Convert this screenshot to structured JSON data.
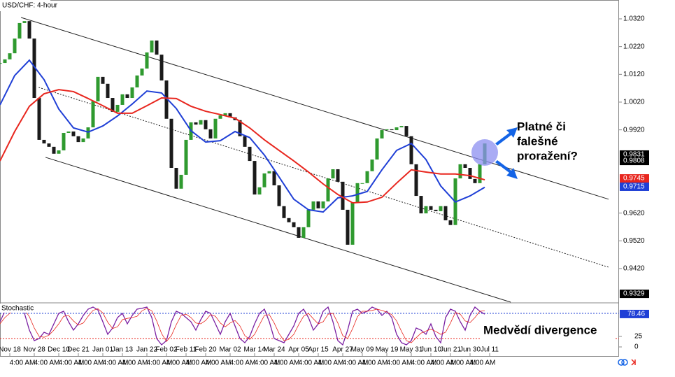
{
  "chart_data": {
    "type": "candlestick",
    "title": "USD/CHF: 4-hour",
    "xlim": [
      0,
      126
    ],
    "xticks": [
      {
        "value": 2,
        "label": "Nov 18",
        "time": "4:00 AM"
      },
      {
        "value": 7,
        "label": "Nov 28",
        "time": "4:00 AM"
      },
      {
        "value": 12,
        "label": "Dec 10",
        "time": "4:00 AM"
      },
      {
        "value": 16,
        "label": "Dec 21",
        "time": "4:00 AM"
      },
      {
        "value": 21,
        "label": "Jan 01",
        "time": "4:00 AM"
      },
      {
        "value": 25,
        "label": "Jan 13",
        "time": "4:00 AM"
      },
      {
        "value": 30,
        "label": "Jan 22",
        "time": "4:00 AM"
      },
      {
        "value": 34,
        "label": "Feb 02",
        "time": "4:00 AM"
      },
      {
        "value": 38,
        "label": "Feb 11",
        "time": "4:00 AM"
      },
      {
        "value": 42,
        "label": "Feb 20",
        "time": "4:00 AM"
      },
      {
        "value": 47,
        "label": "Mar 02",
        "time": "4:00 AM"
      },
      {
        "value": 52,
        "label": "Mar 14",
        "time": "4:00 AM"
      },
      {
        "value": 56,
        "label": "Mar 24",
        "time": "4:00 AM"
      },
      {
        "value": 61,
        "label": "Apr 05",
        "time": "4:00 AM"
      },
      {
        "value": 65,
        "label": "Apr 15",
        "time": "4:00 AM"
      },
      {
        "value": 70,
        "label": "Apr 27",
        "time": "4:00 AM"
      },
      {
        "value": 74,
        "label": "May 09",
        "time": "4:00 AM"
      },
      {
        "value": 79,
        "label": "May 19",
        "time": "4:00 AM"
      },
      {
        "value": 84,
        "label": "May 31",
        "time": "4:00 AM"
      },
      {
        "value": 88,
        "label": "Jun 10",
        "time": "4:00 AM"
      },
      {
        "value": 92,
        "label": "Jun 21",
        "time": "4:00 AM"
      },
      {
        "value": 96,
        "label": "Jun 30",
        "time": "4:00 AM"
      },
      {
        "value": 100,
        "label": "Jul 11"
      }
    ],
    "ylim": [
      0.9299,
      1.0388
    ],
    "yticks": [
      {
        "value": 1.032,
        "label": "1.0320"
      },
      {
        "value": 1.022,
        "label": "1.0220"
      },
      {
        "value": 1.012,
        "label": "1.0120"
      },
      {
        "value": 1.002,
        "label": "1.0020"
      },
      {
        "value": 0.992,
        "label": "0.9920"
      },
      {
        "value": 0.962,
        "label": "0.9620"
      },
      {
        "value": 0.952,
        "label": "0.9520"
      },
      {
        "value": 0.942,
        "label": "0.9420"
      }
    ],
    "up_color": "#2f9a2f",
    "down_color": "#1a1a1a",
    "close": [
      1.0161,
      1.0174,
      1.0196,
      1.0249,
      1.0305,
      1.0312,
      1.0249,
      1.0035,
      0.9884,
      0.9871,
      0.9859,
      0.9834,
      0.9846,
      0.9909,
      0.9914,
      0.9897,
      0.9876,
      0.9889,
      0.9929,
      1.0023,
      1.0111,
      1.0086,
      1.0035,
      0.9985,
      1.001,
      1.0048,
      1.0035,
      1.0073,
      1.0116,
      1.0141,
      1.0199,
      1.0242,
      1.0191,
      1.0098,
      0.996,
      0.9783,
      0.9708,
      0.9758,
      0.9884,
      0.9947,
      0.9939,
      0.9955,
      0.9922,
      0.9889,
      0.996,
      0.9972,
      0.998,
      0.9965,
      0.9955,
      0.9897,
      0.9859,
      0.9808,
      0.9687,
      0.9713,
      0.9763,
      0.9771,
      0.972,
      0.9645,
      0.9602,
      0.9587,
      0.9569,
      0.9531,
      0.9569,
      0.9632,
      0.9662,
      0.9637,
      0.9662,
      0.9745,
      0.9778,
      0.9733,
      0.9632,
      0.9506,
      0.9657,
      0.9728,
      0.9728,
      0.9771,
      0.9813,
      0.9889,
      0.9919,
      0.9922,
      0.9919,
      0.9929,
      0.9934,
      0.9897,
      0.9796,
      0.9682,
      0.9619,
      0.9645,
      0.9632,
      0.9627,
      0.9645,
      0.9594,
      0.9577,
      0.9745,
      0.9796,
      0.9783,
      0.9743,
      0.9728,
      0.9796,
      0.9871
    ],
    "ma_x": [
      0,
      3,
      6,
      9,
      12,
      15,
      18,
      21,
      24,
      27,
      30,
      33,
      36,
      39,
      42,
      45,
      48,
      51,
      54,
      57,
      60,
      63,
      66,
      69,
      72,
      75,
      78,
      81,
      84,
      87,
      90,
      93,
      96,
      99
    ],
    "moving_averages": [
      {
        "color": "#1f3fd6",
        "values": [
          1.001,
          1.0116,
          1.0171,
          1.0101,
          0.9995,
          0.9927,
          0.9912,
          0.9934,
          0.997,
          1.0013,
          1.006,
          1.0053,
          0.9997,
          0.9917,
          0.9876,
          0.9881,
          0.9914,
          0.9892,
          0.9829,
          0.975,
          0.967,
          0.9632,
          0.9624,
          0.9675,
          0.9682,
          0.9698,
          0.9776,
          0.9846,
          0.9871,
          0.9813,
          0.9718,
          0.966,
          0.9682,
          0.9713
        ]
      },
      {
        "color": "#e8261e",
        "values": [
          0.9808,
          0.9914,
          1.0005,
          1.005,
          1.0065,
          1.0058,
          1.0033,
          1.0007,
          0.998,
          0.998,
          1.0007,
          1.0035,
          1.0033,
          1.0005,
          0.9987,
          0.9975,
          0.9962,
          0.9927,
          0.9884,
          0.9846,
          0.9808,
          0.9768,
          0.9725,
          0.9687,
          0.9657,
          0.966,
          0.9677,
          0.9728,
          0.9776,
          0.9768,
          0.9761,
          0.9761,
          0.9755,
          0.974
        ]
      }
    ],
    "channel": [
      {
        "style": "solid",
        "x": [
          4.3,
          124.3
        ],
        "y": [
          1.0325,
          0.967
        ]
      },
      {
        "style": "dotted",
        "x": [
          7.9,
          124.3
        ],
        "y": [
          1.0073,
          0.9425
        ]
      },
      {
        "style": "solid",
        "x": [
          9.3,
          104.3
        ],
        "y": [
          0.9821,
          0.9299
        ]
      }
    ],
    "price_markers": [
      {
        "value": 0.9831,
        "color": "#000000"
      },
      {
        "value": 0.9808,
        "color": "#000000"
      },
      {
        "value": 0.9745,
        "color": "#e8261e"
      },
      {
        "value": 0.9715,
        "color": "#1f3fd6"
      },
      {
        "value": 0.9329,
        "color": "#000000"
      }
    ],
    "annotations": [
      "Platné či",
      "falešné",
      "proražení?",
      "Medvědí divergence"
    ],
    "stochastic": {
      "title": "Stochastic",
      "ylim": [
        -15,
        105
      ],
      "yticks": [
        0,
        25
      ],
      "levels": [
        {
          "value": 80,
          "color": "#1f3fd6"
        },
        {
          "value": 20,
          "color": "#e8261e"
        }
      ],
      "marker": {
        "value": 78.46,
        "color": "#1f3fd6"
      },
      "series": [
        {
          "color": "#7a1fa2",
          "values": [
            60,
            85,
            90,
            92,
            95,
            80,
            40,
            15,
            20,
            35,
            30,
            55,
            80,
            85,
            60,
            40,
            55,
            75,
            90,
            95,
            88,
            60,
            30,
            45,
            70,
            80,
            55,
            75,
            90,
            92,
            95,
            70,
            20,
            5,
            15,
            60,
            85,
            80,
            70,
            60,
            40,
            65,
            85,
            80,
            55,
            30,
            60,
            80,
            50,
            20,
            10,
            25,
            55,
            80,
            90,
            60,
            20,
            15,
            10,
            30,
            50,
            80,
            90,
            70,
            40,
            55,
            85,
            95,
            60,
            15,
            5,
            40,
            85,
            90,
            80,
            85,
            95,
            90,
            75,
            85,
            70,
            30,
            10,
            5,
            15,
            45,
            40,
            30,
            55,
            25,
            10,
            70,
            90,
            85,
            60,
            40,
            75,
            95,
            85,
            78
          ]
        },
        {
          "color": "#e8261e",
          "values": [
            55,
            70,
            80,
            89,
            92,
            89,
            72,
            45,
            25,
            23,
            28,
            40,
            55,
            73,
            75,
            62,
            52,
            57,
            73,
            87,
            91,
            81,
            59,
            44,
            48,
            65,
            68,
            70,
            73,
            86,
            92,
            86,
            62,
            32,
            13,
            27,
            53,
            75,
            78,
            70,
            57,
            55,
            63,
            77,
            73,
            57,
            48,
            57,
            63,
            50,
            27,
            18,
            30,
            53,
            75,
            77,
            57,
            32,
            15,
            18,
            30,
            53,
            73,
            80,
            67,
            55,
            60,
            78,
            80,
            57,
            27,
            20,
            43,
            72,
            85,
            85,
            87,
            90,
            87,
            83,
            77,
            62,
            37,
            15,
            10,
            22,
            33,
            38,
            42,
            37,
            30,
            35,
            57,
            82,
            78,
            62,
            58,
            70,
            85,
            86
          ]
        }
      ]
    }
  }
}
